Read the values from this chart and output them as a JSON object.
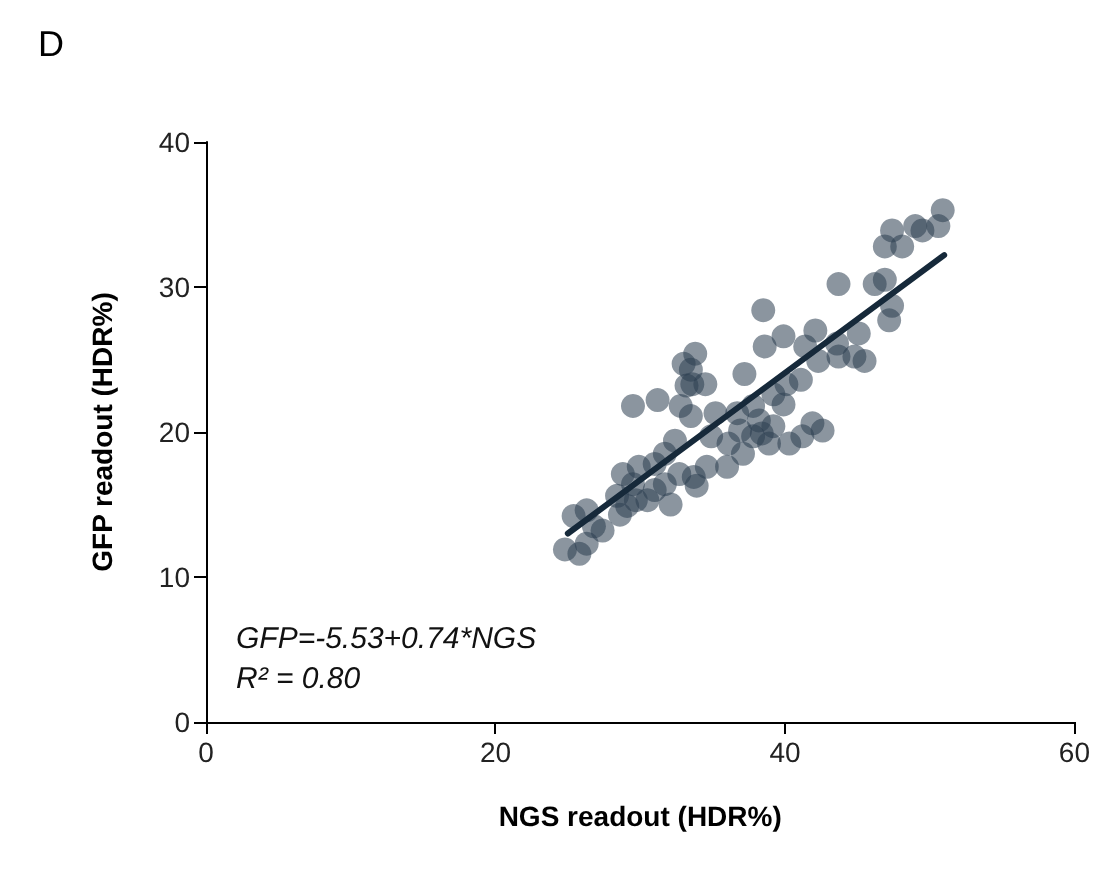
{
  "chart_data": {
    "type": "scatter",
    "title": "D",
    "xlabel": "NGS readout (HDR%)",
    "ylabel": "GFP readout (HDR%)",
    "xlim": [
      0,
      60
    ],
    "xticks": [
      0,
      20,
      40,
      60
    ],
    "ylim": [
      0,
      40
    ],
    "yticks": [
      0,
      10,
      20,
      30,
      40
    ],
    "grid": false,
    "marker": "circle",
    "annotations": [
      "GFP=-5.53+0.74*NGS",
      "R² = 0.80"
    ],
    "series": [
      {
        "color": "#2c3e50",
        "x": [
          24.8,
          25.8,
          26.3,
          25.4,
          26.3,
          26.8,
          28.4,
          28.6,
          29.1,
          28.8,
          29.7,
          29.9,
          31.0,
          31.0,
          32.1,
          31.7,
          32.7,
          32.4,
          33.7,
          33.9,
          34.6,
          35.2,
          34.9,
          36.0,
          29.5,
          31.2,
          32.8,
          33.5,
          33.2,
          33.6,
          34.5,
          33.0,
          33.8,
          33.5,
          36.7,
          36.9,
          37.2,
          37.8,
          38.2,
          38.4,
          37.8,
          38.9,
          39.2,
          40.3,
          41.2,
          41.9,
          42.6,
          39.9,
          40.1,
          41.1,
          39.2,
          38.6,
          39.9,
          38.5,
          41.4,
          42.1,
          42.3,
          43.6,
          43.7,
          45.1,
          44.8,
          45.5,
          43.7,
          46.2,
          46.9,
          47.4,
          47.2,
          46.9,
          48.1,
          47.4,
          49.0,
          49.5,
          50.6,
          50.9,
          30.5,
          31.7,
          27.4,
          29.5,
          37.1,
          36.1
        ],
        "values": [
          11.9,
          11.6,
          12.3,
          14.2,
          14.6,
          13.5,
          15.6,
          14.3,
          14.9,
          17.1,
          15.3,
          17.6,
          17.8,
          16.0,
          15.0,
          18.5,
          17.1,
          19.4,
          16.9,
          16.3,
          17.6,
          21.3,
          19.7,
          17.6,
          21.8,
          22.2,
          21.8,
          21.1,
          23.2,
          23.3,
          23.3,
          24.7,
          25.4,
          24.3,
          21.3,
          20.1,
          24.0,
          21.8,
          20.8,
          19.9,
          19.7,
          19.2,
          20.4,
          19.2,
          19.7,
          20.6,
          20.1,
          21.9,
          23.3,
          23.6,
          22.6,
          25.9,
          26.6,
          28.4,
          25.9,
          27.0,
          24.9,
          26.1,
          25.2,
          26.8,
          25.2,
          24.9,
          30.2,
          30.2,
          30.5,
          28.7,
          27.7,
          32.8,
          32.8,
          33.9,
          34.2,
          33.9,
          34.2,
          35.3,
          15.3,
          16.4,
          13.2,
          16.4,
          18.5,
          19.2
        ]
      },
      {
        "type": "line",
        "color": "#16293a",
        "marker": "none",
        "line_style": "solid",
        "x": [
          25,
          51
        ],
        "values": [
          13.0,
          32.2
        ]
      }
    ]
  }
}
